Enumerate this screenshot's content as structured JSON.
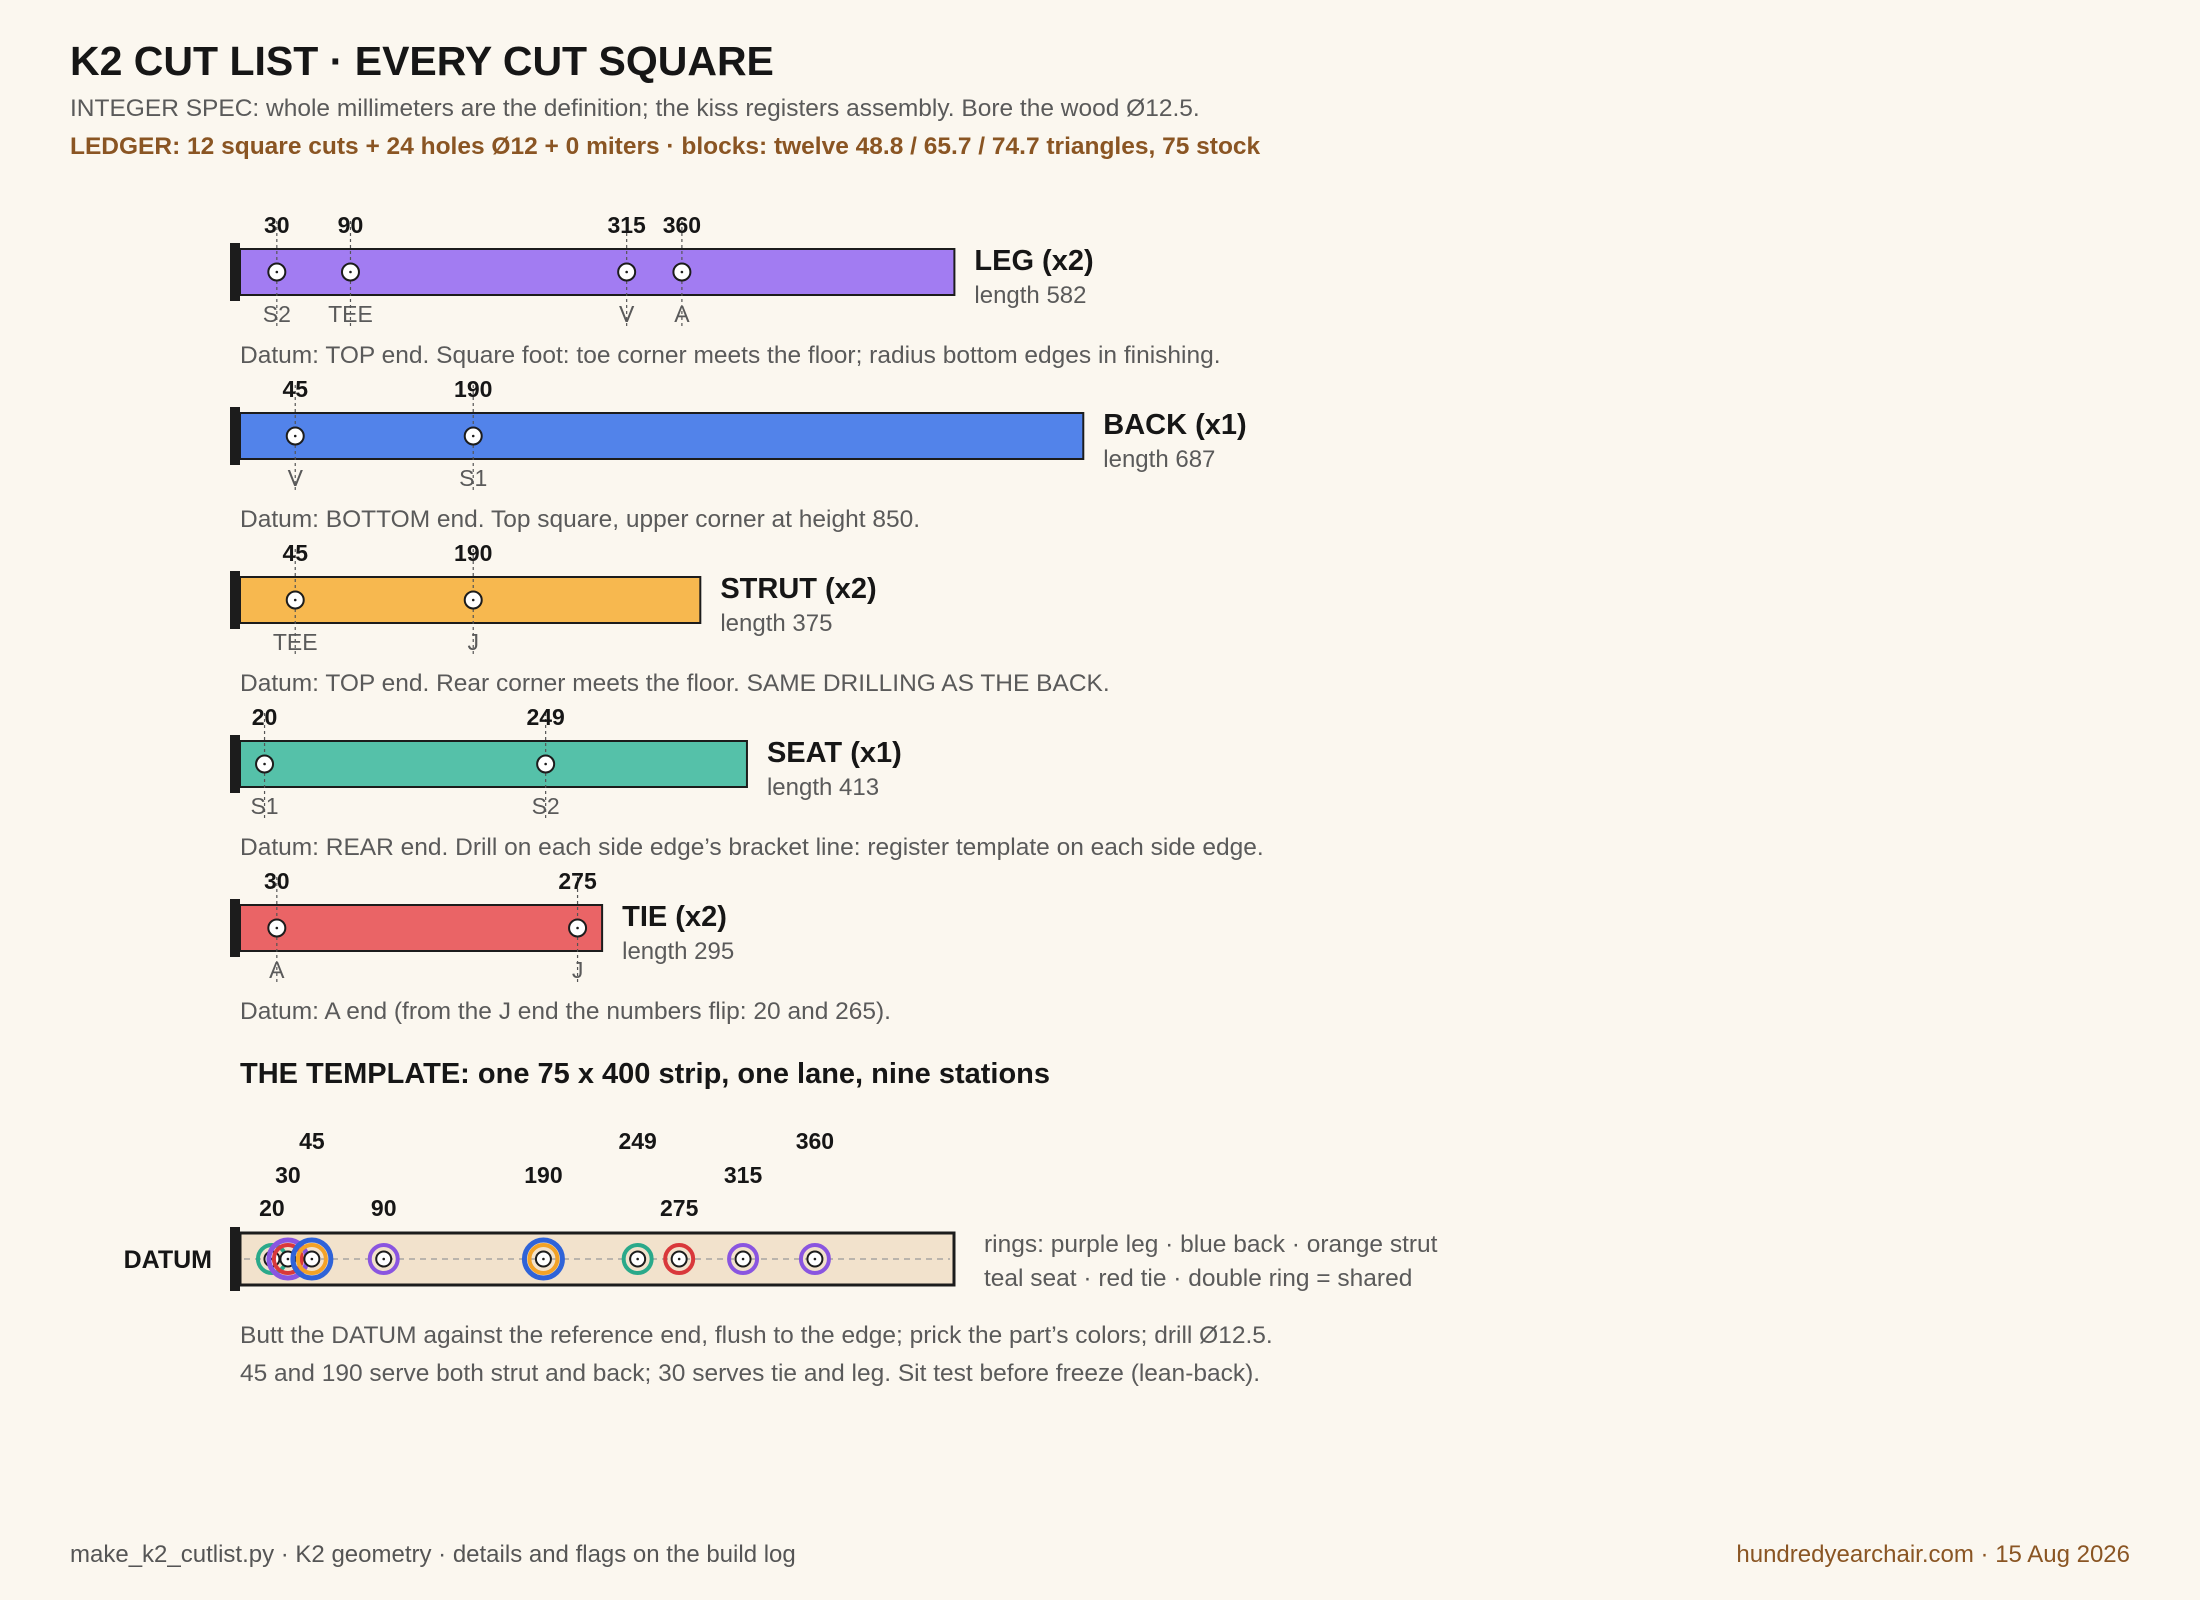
{
  "header": {
    "title": "K2 CUT LIST · EVERY CUT SQUARE",
    "subtitle": "INTEGER SPEC: whole millimeters are the definition; the kiss registers assembly. Bore the wood Ø12.5.",
    "ledger": "LEDGER: 12 square cuts + 24 holes Ø12 + 0 miters · blocks: twelve 48.8 / 65.7 / 74.7 triangles, 75 stock"
  },
  "parts": [
    {
      "name": "LEG (x2)",
      "length_label": "length 582",
      "length": 582,
      "color": "#a27cf2",
      "holes": [
        {
          "pos": 30,
          "label": "S2"
        },
        {
          "pos": 90,
          "label": "TEE"
        },
        {
          "pos": 315,
          "label": "V"
        },
        {
          "pos": 360,
          "label": "A"
        }
      ],
      "note": "Datum: TOP end. Square foot: toe corner meets the floor; radius bottom edges in finishing."
    },
    {
      "name": "BACK (x1)",
      "length_label": "length 687",
      "length": 687,
      "color": "#5283ea",
      "holes": [
        {
          "pos": 45,
          "label": "V"
        },
        {
          "pos": 190,
          "label": "S1"
        }
      ],
      "note": "Datum: BOTTOM end. Top square, upper corner at height 850."
    },
    {
      "name": "STRUT (x2)",
      "length_label": "length 375",
      "length": 375,
      "color": "#f7b84f",
      "holes": [
        {
          "pos": 45,
          "label": "TEE"
        },
        {
          "pos": 190,
          "label": "J"
        }
      ],
      "note": "Datum: TOP end. Rear corner meets the floor. SAME DRILLING AS THE BACK."
    },
    {
      "name": "SEAT (x1)",
      "length_label": "length 413",
      "length": 413,
      "color": "#55c1a9",
      "holes": [
        {
          "pos": 20,
          "label": "S1"
        },
        {
          "pos": 249,
          "label": "S2"
        }
      ],
      "note": "Datum: REAR end. Drill on each side edge’s bracket line: register template on each side edge."
    },
    {
      "name": "TIE (x2)",
      "length_label": "length 295",
      "length": 295,
      "color": "#ea6466",
      "holes": [
        {
          "pos": 30,
          "label": "A"
        },
        {
          "pos": 275,
          "label": "J"
        }
      ],
      "note": "Datum: A end (from the J end the numbers flip: 20 and 265)."
    }
  ],
  "template": {
    "heading": "THE TEMPLATE: one 75 x 400 strip, one lane, nine stations",
    "datum_label": "DATUM",
    "strip_length": 400,
    "stations": [
      {
        "pos": 20,
        "rings": [
          "seat"
        ]
      },
      {
        "pos": 30,
        "rings": [
          "tie",
          "leg"
        ]
      },
      {
        "pos": 45,
        "rings": [
          "strut",
          "back"
        ]
      },
      {
        "pos": 90,
        "rings": [
          "leg"
        ]
      },
      {
        "pos": 190,
        "rings": [
          "strut",
          "back"
        ]
      },
      {
        "pos": 249,
        "rings": [
          "seat"
        ]
      },
      {
        "pos": 275,
        "rings": [
          "tie"
        ]
      },
      {
        "pos": 315,
        "rings": [
          "leg"
        ]
      },
      {
        "pos": 360,
        "rings": [
          "leg"
        ]
      }
    ],
    "ring_colors": {
      "leg": "#8a55e0",
      "back": "#2f63d8",
      "strut": "#f2a227",
      "seat": "#2aa98a",
      "tie": "#d9383b"
    },
    "legend_line1": "rings: purple leg · blue back · orange strut",
    "legend_line2": "teal seat · red tie · double ring = shared",
    "note_line1": "Butt the DATUM against the reference end, flush to the edge; prick the part’s colors; drill Ø12.5.",
    "note_line2": "45 and 190 serve both strut and back; 30 serves tie and leg. Sit test before freeze (lean-back)."
  },
  "footer": {
    "left": "make_k2_cutlist.py · K2 geometry · details and flags on the build log",
    "right": "hundredyearchair.com · 15 Aug 2026"
  }
}
